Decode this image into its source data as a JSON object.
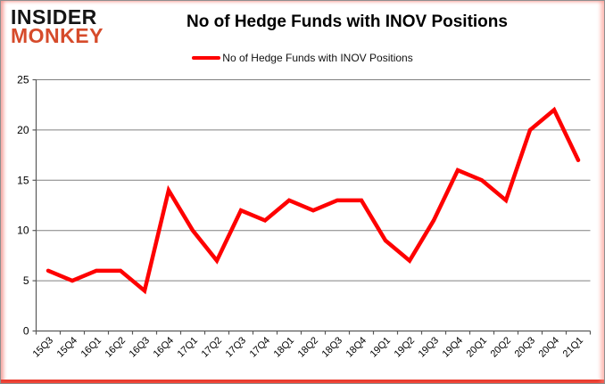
{
  "brand": {
    "line1": "INSIDER",
    "line2": "MONKEY"
  },
  "header": {
    "title": "No of Hedge Funds with INOV Positions"
  },
  "legend": {
    "label": "No of Hedge Funds with INOV Positions"
  },
  "colors": {
    "series_red": "#fe0000",
    "brand_red": "#d64b2b",
    "grid_gray": "#808080",
    "axis_gray": "#595959",
    "text_black": "#000000"
  },
  "chart_data": {
    "type": "line",
    "title": "No of Hedge Funds with INOV Positions",
    "categories": [
      "15Q3",
      "15Q4",
      "16Q1",
      "16Q2",
      "16Q3",
      "16Q4",
      "17Q1",
      "17Q2",
      "17Q3",
      "17Q4",
      "18Q1",
      "18Q2",
      "18Q3",
      "18Q4",
      "19Q1",
      "19Q2",
      "19Q3",
      "19Q4",
      "20Q1",
      "20Q2",
      "20Q3",
      "20Q4",
      "21Q1"
    ],
    "series": [
      {
        "name": "No of Hedge Funds with INOV Positions",
        "color": "#fe0000",
        "values": [
          6,
          5,
          6,
          6,
          4,
          14,
          10,
          7,
          12,
          11,
          13,
          12,
          13,
          13,
          9,
          7,
          11,
          16,
          15,
          13,
          20,
          22,
          17
        ]
      }
    ],
    "xlabel": "",
    "ylabel": "",
    "ylim": [
      0,
      25
    ],
    "yticks": [
      0,
      5,
      10,
      15,
      20,
      25
    ],
    "grid": true,
    "legend_position": "top-center",
    "x_tick_label_rotation_deg": -45
  }
}
